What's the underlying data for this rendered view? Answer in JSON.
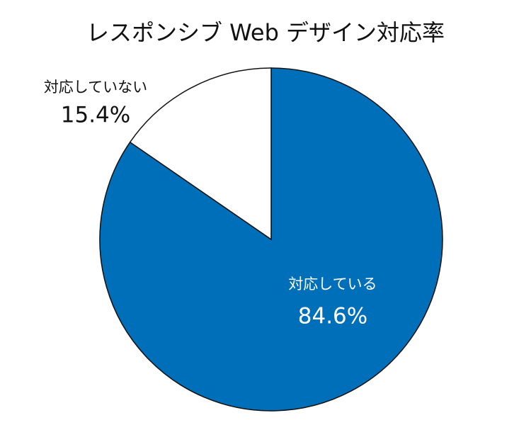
{
  "chart_data": {
    "type": "pie",
    "title": "レスポンシブ Web デザイン対応率",
    "categories": [
      "対応している",
      "対応していない"
    ],
    "values": [
      84.6,
      15.4
    ],
    "value_labels": [
      "84.6%",
      "15.4%"
    ],
    "colors": [
      "#006fba",
      "#ffffff"
    ]
  }
}
